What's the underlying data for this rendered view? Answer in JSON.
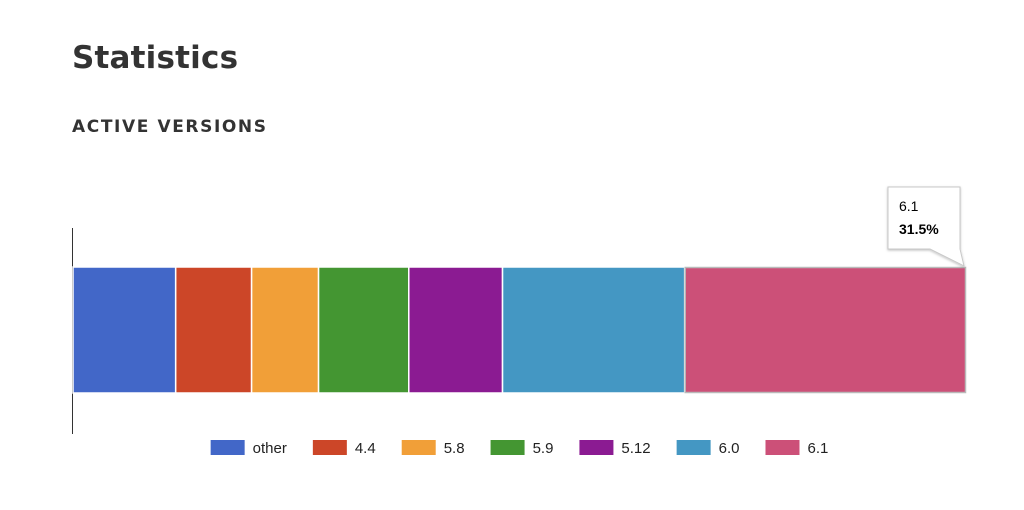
{
  "page": {
    "title": "Statistics",
    "section_title": "ACTIVE VERSIONS"
  },
  "chart_data": {
    "type": "bar",
    "orientation": "horizontal-stacked-100",
    "categories": [
      ""
    ],
    "series": [
      {
        "name": "other",
        "values": [
          11.5
        ],
        "color": "#4267c8"
      },
      {
        "name": "4.4",
        "values": [
          8.5
        ],
        "color": "#cc4628"
      },
      {
        "name": "5.8",
        "values": [
          7.5
        ],
        "color": "#f19f38"
      },
      {
        "name": "5.9",
        "values": [
          10.1
        ],
        "color": "#449632"
      },
      {
        "name": "5.12",
        "values": [
          10.5
        ],
        "color": "#8b1b92"
      },
      {
        "name": "6.0",
        "values": [
          20.4
        ],
        "color": "#4497c3"
      },
      {
        "name": "6.1",
        "values": [
          31.5
        ],
        "color": "#cc5078"
      }
    ],
    "xlim": [
      0,
      100
    ],
    "legend": "bottom",
    "grid": false,
    "tooltip": {
      "series": "6.1",
      "label": "6.1",
      "value_text": "31.5%"
    }
  }
}
